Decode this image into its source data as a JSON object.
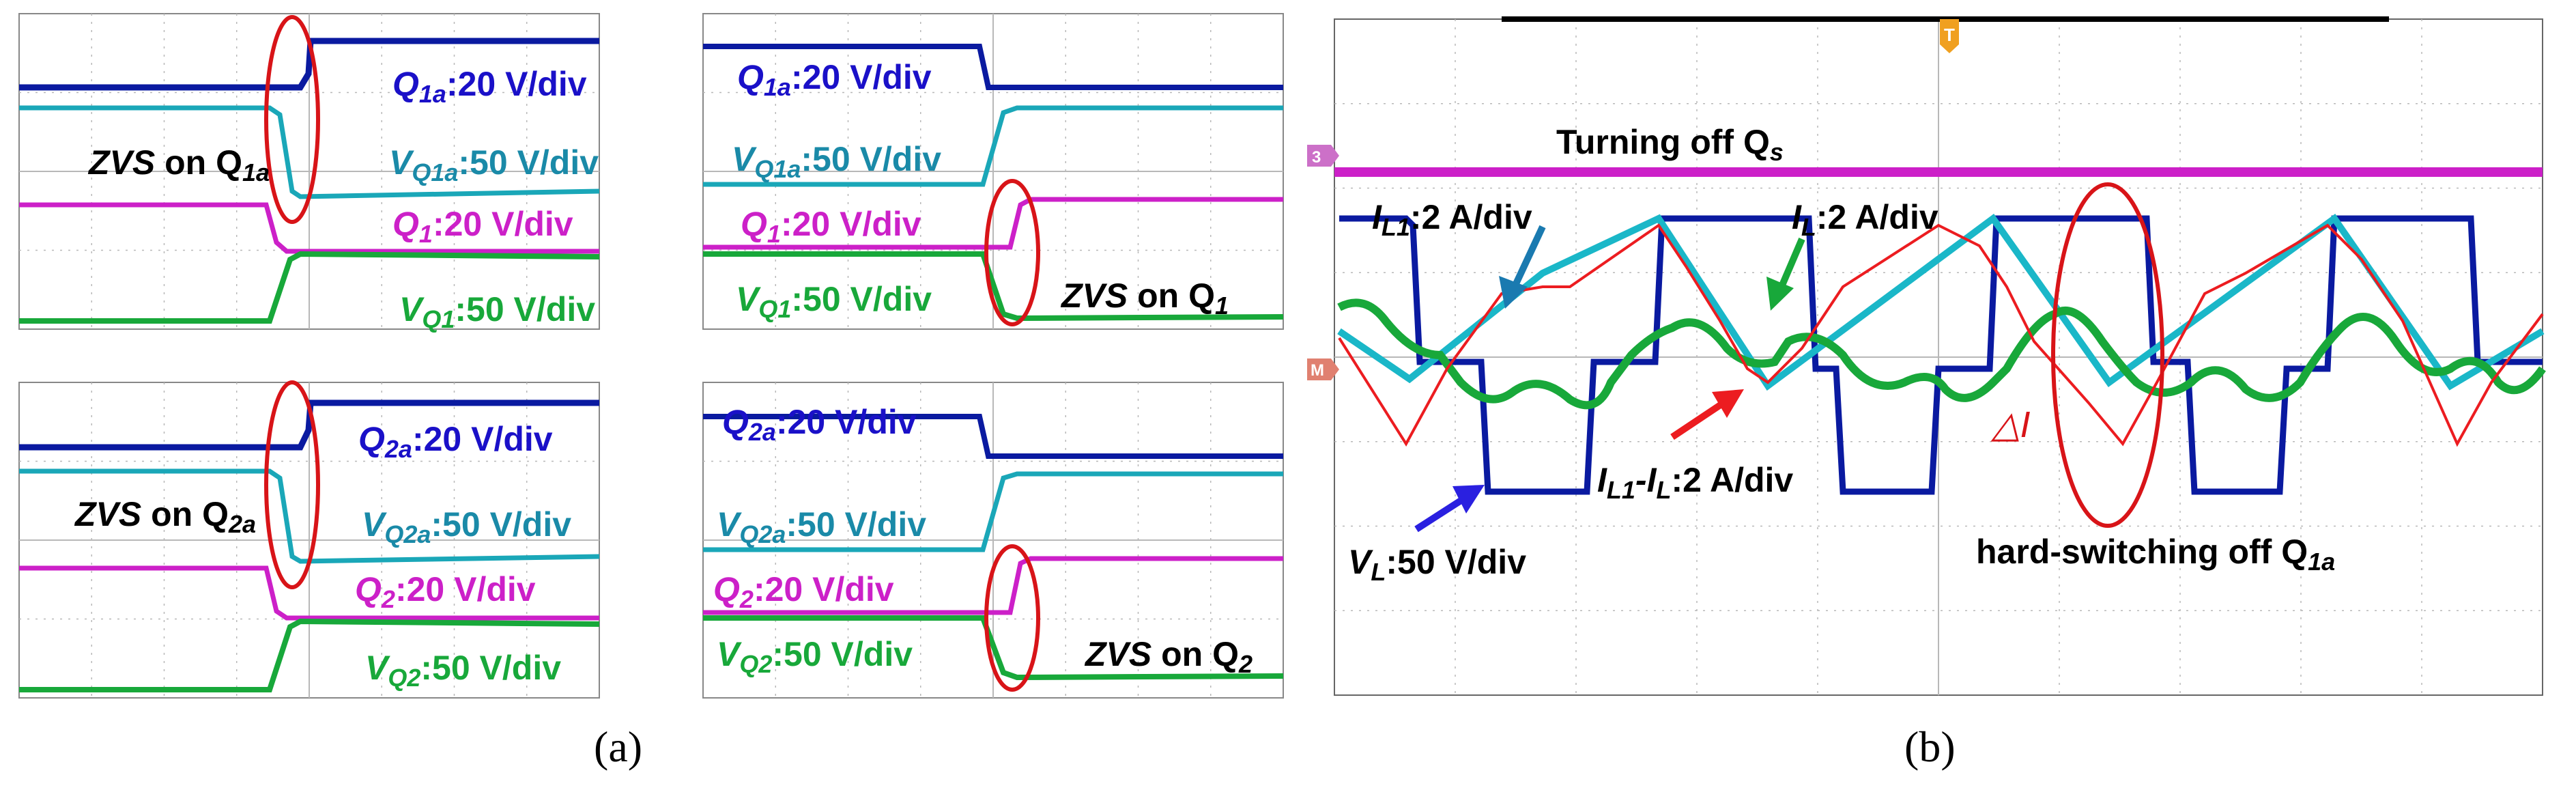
{
  "figure": {
    "caption_a": "(a)",
    "caption_b": "(b)"
  },
  "colors": {
    "blue": "#1a10c8",
    "darkblue": "#0a1aa0",
    "cyan": "#1aa7b8",
    "teal": "#1a8aa8",
    "magenta": "#cc20c8",
    "green": "#18a83a",
    "red": "#e8181c",
    "ellipse": "#d81418",
    "grid": "#b8b8b8"
  },
  "chart_data": [
    {
      "type": "line",
      "panel": "a-top-left",
      "title": "ZVS on Q1a",
      "series": [
        {
          "name": "Q1a",
          "scale": "20 V/div",
          "color": "darkblue"
        },
        {
          "name": "VQ1a",
          "scale": "50 V/div",
          "color": "cyan"
        },
        {
          "name": "Q1",
          "scale": "20 V/div",
          "color": "magenta"
        },
        {
          "name": "VQ1",
          "scale": "50 V/div",
          "color": "green"
        }
      ],
      "labels": {
        "ann_main": "ZVS",
        "ann_on": " on Q",
        "ann_sub": "1a",
        "l1_main": "Q",
        "l1_sub": "1a",
        "l1_scale": ":20 V/div",
        "l2_main": "V",
        "l2_sub": "Q1a",
        "l2_scale": ":50 V/div",
        "l3_main": "Q",
        "l3_sub": "1",
        "l3_scale": ":20 V/div",
        "l4_main": "V",
        "l4_sub": "Q1",
        "l4_scale": ":50 V/div"
      }
    },
    {
      "type": "line",
      "panel": "a-top-right",
      "title": "ZVS on Q1",
      "labels": {
        "ann_main": "ZVS",
        "ann_on": " on Q",
        "ann_sub": "1",
        "l1_main": "Q",
        "l1_sub": "1a",
        "l1_scale": ":20 V/div",
        "l2_main": "V",
        "l2_sub": "Q1a",
        "l2_scale": ":50 V/div",
        "l3_main": "Q",
        "l3_sub": "1",
        "l3_scale": ":20 V/div",
        "l4_main": "V",
        "l4_sub": "Q1",
        "l4_scale": ":50 V/div"
      }
    },
    {
      "type": "line",
      "panel": "a-bottom-left",
      "title": "ZVS on Q2a",
      "labels": {
        "ann_main": "ZVS",
        "ann_on": " on Q",
        "ann_sub": "2a",
        "l1_main": "Q",
        "l1_sub": "2a",
        "l1_scale": ":20 V/div",
        "l2_main": "V",
        "l2_sub": "Q2a",
        "l2_scale": ":50 V/div",
        "l3_main": "Q",
        "l3_sub": "2",
        "l3_scale": ":20 V/div",
        "l4_main": "V",
        "l4_sub": "Q2",
        "l4_scale": ":50 V/div"
      }
    },
    {
      "type": "line",
      "panel": "a-bottom-right",
      "title": "ZVS on Q2",
      "labels": {
        "ann_main": "ZVS",
        "ann_on": " on Q",
        "ann_sub": "2",
        "l1_main": "Q",
        "l1_sub": "2a",
        "l1_scale": ":20 V/div",
        "l2_main": "V",
        "l2_sub": "Q2a",
        "l2_scale": ":50 V/div",
        "l3_main": "Q",
        "l3_sub": "2",
        "l3_scale": ":20 V/div",
        "l4_main": "V",
        "l4_sub": "Q2",
        "l4_scale": ":50 V/div"
      }
    },
    {
      "type": "line",
      "panel": "b",
      "title": "Turning off Qs",
      "series": [
        {
          "name": "VL",
          "scale": "50 V/div",
          "color": "darkblue"
        },
        {
          "name": "IL1",
          "scale": "2 A/div",
          "color": "cyan"
        },
        {
          "name": "IL",
          "scale": "2 A/div",
          "color": "green"
        },
        {
          "name": "IL1-IL",
          "scale": "2 A/div",
          "color": "red"
        }
      ],
      "labels": {
        "turning": "Turning off Q",
        "turning_sub": "s",
        "il1_main": "I",
        "il1_sub": "L1",
        "il1_scale": ":2 A/div",
        "il_main": "I",
        "il_sub": "L",
        "il_scale": ":2 A/div",
        "diff_a": "I",
        "diff_a_sub": "L1",
        "diff_b": "-I",
        "diff_b_sub": "L",
        "diff_scale": ":2 A/div",
        "vl_main": "V",
        "vl_sub": "L",
        "vl_scale": ":50 V/div",
        "hard": "hard-switching off Q",
        "hard_sub": "1a",
        "delta": "△I",
        "marker_t": "T",
        "marker_3": "3",
        "marker_m": "M"
      }
    }
  ]
}
